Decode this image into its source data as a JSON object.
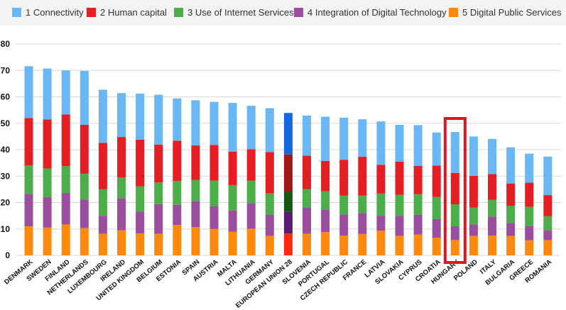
{
  "chart_data": {
    "type": "bar",
    "stacked": true,
    "title": "",
    "xlabel": "",
    "ylabel": "",
    "ylim": [
      0,
      80
    ],
    "yticks": [
      0,
      10,
      20,
      30,
      40,
      50,
      60,
      70,
      80
    ],
    "grid": true,
    "legend": "top",
    "highlight_category": "HUNGARY",
    "categories": [
      "DENMARK",
      "SWEDEN",
      "FINLAND",
      "NETHERLANDS",
      "LUXEMBOURG",
      "IRELAND",
      "UNITED KINGDOM",
      "BELGIUM",
      "ESTONIA",
      "SPAIN",
      "AUSTRIA",
      "MALTA",
      "LITHUANIA",
      "GERMANY",
      "EUROPEAN UNION 28",
      "SLOVENIA",
      "PORTUGAL",
      "CZECH REPUBLIC",
      "FRANCE",
      "LATVIA",
      "SLOVAKIA",
      "CYPRUS",
      "CROATIA",
      "HUNGARY",
      "POLAND",
      "ITALY",
      "BULGARIA",
      "GREECE",
      "ROMANIA"
    ],
    "series": [
      {
        "name": "5 Digital Public Services",
        "color": "#fd8a0f",
        "eu_color": "#ff2a14",
        "values": [
          11.0,
          10.5,
          11.7,
          10.3,
          8.2,
          9.5,
          8.3,
          8.2,
          11.5,
          10.7,
          10.0,
          9.0,
          10.1,
          7.4,
          8.3,
          8.2,
          8.8,
          7.5,
          8.1,
          9.4,
          7.4,
          7.9,
          6.7,
          5.8,
          7.4,
          7.5,
          7.4,
          5.7,
          5.8
        ]
      },
      {
        "name": "4 Integration of Digital Technology",
        "color": "#9b4e9e",
        "eu_color": "#5a1b72",
        "values": [
          12.3,
          11.5,
          11.9,
          10.8,
          6.8,
          12.2,
          8.2,
          11.2,
          7.6,
          9.9,
          8.7,
          8.0,
          9.7,
          8.1,
          8.1,
          9.9,
          8.5,
          8.0,
          7.9,
          5.6,
          7.6,
          7.5,
          7.0,
          5.2,
          4.3,
          7.2,
          4.9,
          5.5,
          3.8
        ]
      },
      {
        "name": "3 Use of Internet Services",
        "color": "#4bae4a",
        "eu_color": "#145a14",
        "values": [
          10.8,
          10.9,
          10.2,
          9.8,
          10.0,
          7.8,
          9.6,
          8.2,
          9.1,
          7.9,
          9.6,
          9.6,
          8.5,
          8.0,
          7.5,
          7.0,
          7.0,
          7.1,
          6.6,
          8.4,
          7.9,
          7.8,
          8.4,
          8.3,
          6.4,
          6.3,
          6.5,
          7.2,
          5.2
        ]
      },
      {
        "name": "2 Human capital",
        "color": "#e41e23",
        "eu_color": "#a01818",
        "values": [
          17.9,
          18.5,
          19.5,
          18.5,
          17.6,
          15.3,
          17.7,
          14.3,
          15.2,
          13.1,
          13.5,
          12.6,
          11.9,
          15.6,
          14.3,
          12.6,
          11.4,
          13.6,
          14.7,
          10.9,
          12.6,
          10.7,
          11.9,
          11.9,
          12.0,
          9.8,
          8.4,
          9.1,
          8.0
        ]
      },
      {
        "name": "1 Connectivity",
        "color": "#6ab7f5",
        "eu_color": "#1368e0",
        "values": [
          19.6,
          19.3,
          16.7,
          20.4,
          20.1,
          16.6,
          17.4,
          18.9,
          16.0,
          17.1,
          16.3,
          18.5,
          16.4,
          16.6,
          15.7,
          15.2,
          16.8,
          15.9,
          14.2,
          16.4,
          13.9,
          15.4,
          12.5,
          15.5,
          14.9,
          13.3,
          13.7,
          11.0,
          14.6
        ]
      }
    ]
  },
  "legend_items": [
    "1 Connectivity",
    "2 Human capital",
    "3 Use of Internet Services",
    "4 Integration of Digital Technology",
    "5 Digital Public Services"
  ],
  "legend_colors": [
    "#6ab7f5",
    "#e41e23",
    "#4bae4a",
    "#9b4e9e",
    "#fd8a0f"
  ],
  "background_color": "#ffffff",
  "legend_background": "#f3f3f3",
  "highlight_color": "#e3141f"
}
